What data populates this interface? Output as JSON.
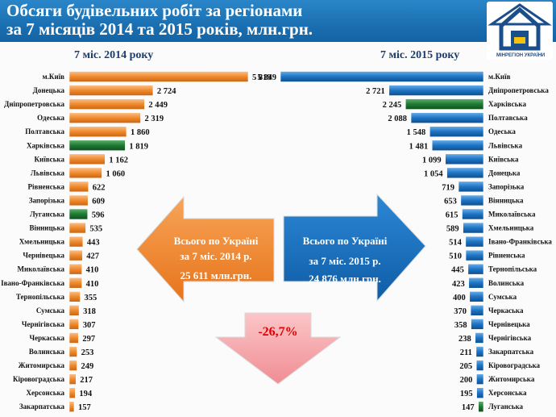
{
  "header": {
    "title_line1": "Обсяги будівельних робіт за регіонами",
    "title_line2": "за 7 місяців 2014 та 2015 років, млн.грн."
  },
  "colors": {
    "header_blue": "#1a6fb0",
    "orange": "#f08a2c",
    "blue": "#1d74c4",
    "green": "#1f7a33",
    "pink_arrow": "#f49a9f",
    "percent_red": "#e10000"
  },
  "chart_data": [
    {
      "type": "bar",
      "orientation": "horizontal",
      "title": "7 міс. 2014 року",
      "categories": [
        "м.Київ",
        "Донецька",
        "Дніпропетровська",
        "Одеська",
        "Полтавська",
        "Харківська",
        "Київська",
        "Львівська",
        "Рівненська",
        "Запорізька",
        "Луганська",
        "Вінницька",
        "Хмельницька",
        "Чернівецька",
        "Миколаївська",
        "Івано-Франківська",
        "Тернопільська",
        "Сумська",
        "Чернігівська",
        "Черкаська",
        "Волинська",
        "Житомирська",
        "Кіровоградська",
        "Херсонська",
        "Закарпатська"
      ],
      "values": [
        5819,
        2724,
        2449,
        2319,
        1860,
        1819,
        1162,
        1060,
        622,
        609,
        596,
        535,
        443,
        427,
        410,
        410,
        355,
        318,
        307,
        297,
        253,
        249,
        217,
        194,
        157
      ],
      "value_labels": [
        "5 819",
        "2 724",
        "2 449",
        "2 319",
        "1 860",
        "1 819",
        "1 162",
        "1 060",
        "622",
        "609",
        "596",
        "535",
        "443",
        "427",
        "410",
        "410",
        "355",
        "318",
        "307",
        "297",
        "253",
        "249",
        "217",
        "194",
        "157"
      ],
      "highlight": [
        "Харківська",
        "Луганська"
      ],
      "xlim": [
        0,
        5819
      ]
    },
    {
      "type": "bar",
      "orientation": "horizontal",
      "title": "7 міс. 2015 року",
      "categories": [
        "м.Київ",
        "Дніпропетровська",
        "Харківська",
        "Полтавська",
        "Одеська",
        "Львівська",
        "Київська",
        "Донецька",
        "Запорізька",
        "Вінницька",
        "Миколаївська",
        "Хмельницька",
        "Івано-Франківська",
        "Рівненська",
        "Тернопільська",
        "Волинська",
        "Сумська",
        "Черкаська",
        "Чернівецька",
        "Чернігівська",
        "Закарпатська",
        "Кіровоградська",
        "Житомирська",
        "Херсонська",
        "Луганська"
      ],
      "values": [
        5849,
        2721,
        2245,
        2088,
        1548,
        1481,
        1099,
        1054,
        719,
        653,
        615,
        589,
        514,
        510,
        445,
        423,
        400,
        370,
        358,
        238,
        211,
        205,
        200,
        195,
        147
      ],
      "value_labels": [
        "5 849",
        "2 721",
        "2 245",
        "2 088",
        "1 548",
        "1 481",
        "1 099",
        "1 054",
        "719",
        "653",
        "615",
        "589",
        "514",
        "510",
        "445",
        "423",
        "400",
        "370",
        "358",
        "238",
        "211",
        "205",
        "200",
        "195",
        "147"
      ],
      "highlight": [
        "Харківська",
        "Луганська"
      ],
      "xlim": [
        0,
        5849
      ]
    }
  ],
  "totals": {
    "left_line1": "Всього по Україні",
    "left_line2": "за 7 міс. 2014 р.",
    "left_line3": "25 611 млн.грн.",
    "right_line1": "Всього по Україні",
    "right_line2": "за 7 міс. 2015 р.",
    "right_line3": "24 876 млн.грн.",
    "change": "-26,7%"
  },
  "logo": {
    "text": "МІНРЕГІОН УКРАЇНИ"
  }
}
